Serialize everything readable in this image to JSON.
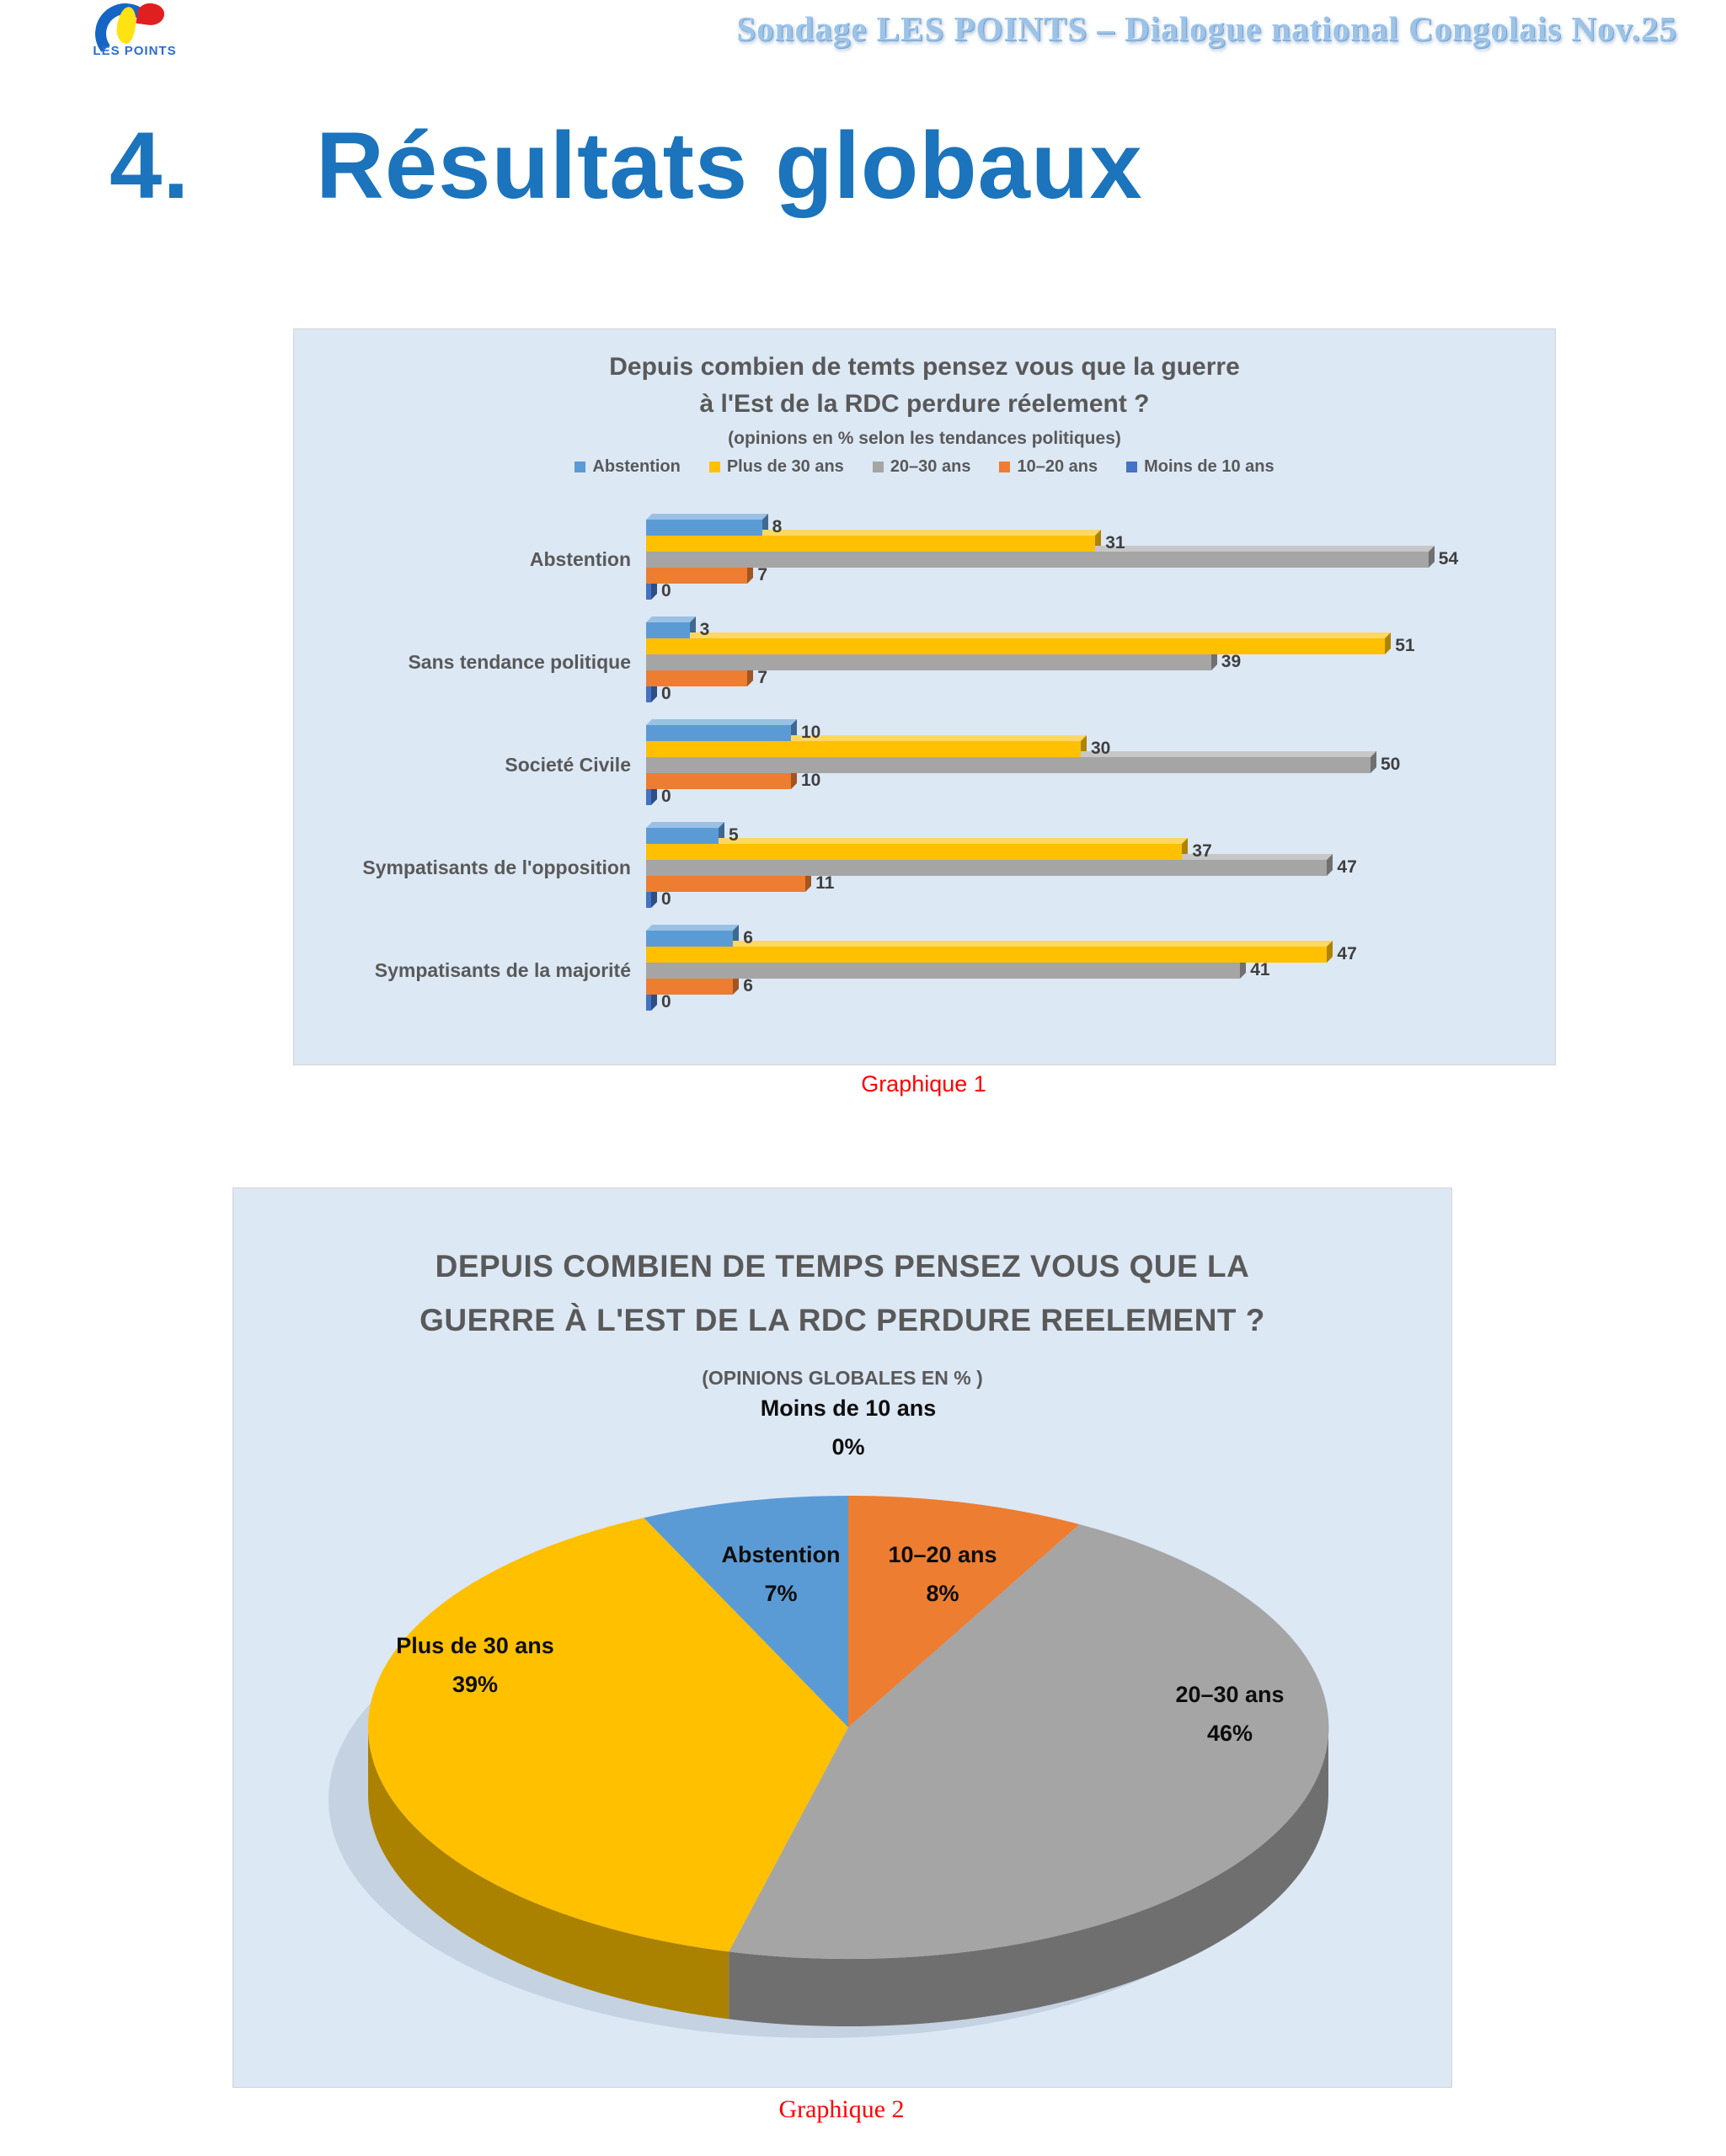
{
  "page": {
    "header": {
      "logo_text": "LES POINTS",
      "title": "Sondage LES POINTS – Dialogue national Congolais  Nov.25"
    },
    "heading": {
      "number": "4.",
      "text": "Résultats globaux"
    },
    "captions": {
      "chart1": "Graphique 1",
      "chart2": "Graphique 2"
    }
  },
  "colors": {
    "heading_blue": "#1b74bc",
    "caption_red": "#fe0000",
    "panel_background": "#dde8f5",
    "chart_text_gray": "#595959"
  },
  "chart_data": [
    {
      "type": "bar",
      "orientation": "horizontal",
      "title_lines": [
        "Depuis combien de temts pensez vous que la guerre",
        "à l'Est de la RDC perdure réelement ?"
      ],
      "subtitle": "(opinions  en % selon les tendances politiques)",
      "categories": [
        "Abstention",
        "Sans tendance politique",
        "Societé Civile",
        "Sympatisants de l'opposition",
        "Sympatisants de la majorité"
      ],
      "series": [
        {
          "name": "Abstention",
          "color": "#5B9BD5",
          "values": [
            8,
            3,
            10,
            5,
            6
          ]
        },
        {
          "name": "Plus de 30 ans",
          "color": "#FFC000",
          "values": [
            31,
            51,
            30,
            37,
            47
          ]
        },
        {
          "name": "20–30 ans",
          "color": "#A5A5A5",
          "values": [
            54,
            39,
            50,
            47,
            41
          ]
        },
        {
          "name": "10–20 ans",
          "color": "#ED7D31",
          "values": [
            7,
            7,
            10,
            11,
            6
          ]
        },
        {
          "name": "Moins de 10 ans",
          "color": "#4472C4",
          "values": [
            0,
            0,
            0,
            0,
            0
          ]
        }
      ],
      "xlim": [
        0,
        54
      ],
      "value_labels": true,
      "legend_position": "top",
      "grid": false
    },
    {
      "type": "pie",
      "effect": "3d",
      "title_lines": [
        "DEPUIS COMBIEN DE TEMPS PENSEZ VOUS QUE LA",
        "GUERRE À L'EST DE LA RDC PERDURE REELEMENT ?"
      ],
      "subtitle": "(OPINIONS GLOBALES EN % )",
      "start_angle": "12-oclock-clockwise",
      "slices": [
        {
          "label": "10–20 ans",
          "pct": 8,
          "pct_label": "8%",
          "color": "#ED7D31"
        },
        {
          "label": "20–30 ans",
          "pct": 46,
          "pct_label": "46%",
          "color": "#A5A5A5"
        },
        {
          "label": "Plus de 30 ans",
          "pct": 39,
          "pct_label": "39%",
          "color": "#FFC000"
        },
        {
          "label": "Abstention",
          "pct": 7,
          "pct_label": "7%",
          "color": "#5B9BD5"
        },
        {
          "label": "Moins de 10 ans",
          "pct": 0,
          "pct_label": "0%",
          "color": "#4472C4"
        }
      ]
    }
  ]
}
